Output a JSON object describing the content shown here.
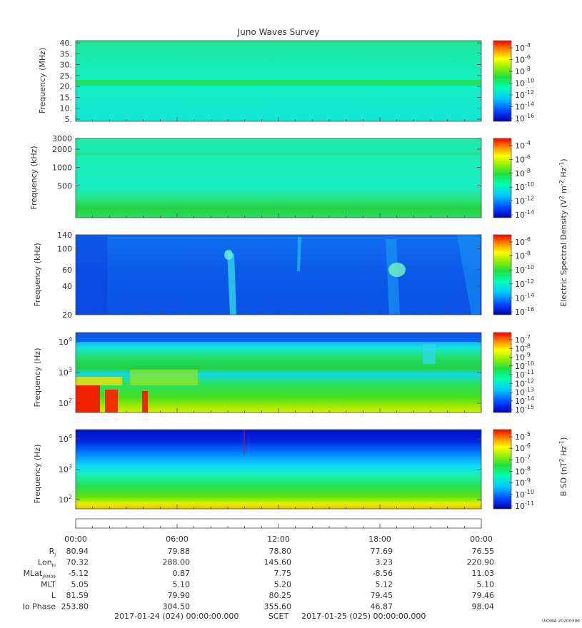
{
  "chart_data": {
    "title": "Juno Waves Survey",
    "type": "heatmap",
    "panels": [
      {
        "name": "panel-1",
        "ylabel": "Frequency (MHz)",
        "yscale": "linear",
        "ylim": [
          4,
          41
        ],
        "yticks": [
          {
            "v": 5,
            "label": "5."
          },
          {
            "v": 10,
            "label": "10."
          },
          {
            "v": 15,
            "label": "15."
          },
          {
            "v": 20,
            "label": "20."
          },
          {
            "v": 25,
            "label": "25."
          },
          {
            "v": 30,
            "label": "30."
          },
          {
            "v": 35,
            "label": "35."
          },
          {
            "v": 40,
            "label": "40."
          }
        ],
        "cbar_exps": [
          "-4",
          "-6",
          "-8",
          "-10",
          "-12",
          "-14",
          "-16"
        ]
      },
      {
        "name": "panel-2",
        "ylabel": "Frequency (kHz)",
        "yscale": "log",
        "ylim": [
          150,
          3000
        ],
        "yticks": [
          {
            "v": 500,
            "label": "500"
          },
          {
            "v": 1000,
            "label": "1000"
          },
          {
            "v": 2000,
            "label": "2000"
          },
          {
            "v": 3000,
            "label": "3000"
          }
        ],
        "cbar_exps": [
          "-4",
          "-6",
          "-8",
          "-10",
          "-12",
          "-14"
        ]
      },
      {
        "name": "panel-3",
        "ylabel": "Frequency (kHz)",
        "yscale": "log",
        "ylim": [
          20,
          140
        ],
        "yticks": [
          {
            "v": 20,
            "label": "20"
          },
          {
            "v": 40,
            "label": "40"
          },
          {
            "v": 60,
            "label": "60"
          },
          {
            "v": 100,
            "label": "100"
          },
          {
            "v": 140,
            "label": "140"
          }
        ],
        "cbar_exps": [
          "-6",
          "-8",
          "-10",
          "-12",
          "-14",
          "-16"
        ]
      },
      {
        "name": "panel-4",
        "ylabel": "Frequency (Hz)",
        "yscale": "log",
        "ylim": [
          50,
          20000
        ],
        "yticks": [
          {
            "v": 100,
            "exp": "2"
          },
          {
            "v": 1000,
            "exp": "3"
          },
          {
            "v": 10000,
            "exp": "4"
          }
        ],
        "cbar_exps": [
          "-7",
          "-8",
          "-9",
          "-10",
          "-11",
          "-12",
          "-13",
          "-14",
          "-15"
        ]
      },
      {
        "name": "panel-5",
        "ylabel": "Frequency (Hz)",
        "yscale": "log",
        "ylim": [
          50,
          20000
        ],
        "yticks": [
          {
            "v": 100,
            "exp": "2"
          },
          {
            "v": 1000,
            "exp": "3"
          },
          {
            "v": 10000,
            "exp": "4"
          }
        ],
        "cbar_exps": [
          "-5",
          "-6",
          "-7",
          "-8",
          "-9",
          "-10",
          "-11"
        ]
      }
    ],
    "colorbar_label_1": "Electric Spectral Density (V",
    "colorbar_label_2": "B SD (nT",
    "x_ticks": [
      "00:00",
      "06:00",
      "12:00",
      "18:00",
      "00:00"
    ],
    "ephemeris": [
      {
        "label": "R",
        "sub": "J",
        "values": [
          "80.94",
          "79.88",
          "78.80",
          "77.69",
          "76.55"
        ]
      },
      {
        "label": "Lon",
        "sub": "III",
        "values": [
          "70.32",
          "288.00",
          "145.60",
          "3.23",
          "220.90"
        ]
      },
      {
        "label": "MLat",
        "sub": "JRM09",
        "values": [
          "-5.12",
          "0.87",
          "7.75",
          "-8.56",
          "11.03"
        ]
      },
      {
        "label": "MLT",
        "sub": "",
        "values": [
          "5.05",
          "5.10",
          "5.20",
          "5.12",
          "5.10"
        ]
      },
      {
        "label": "L",
        "sub": "",
        "values": [
          "81.59",
          "79.90",
          "80.25",
          "79.45",
          "79.46"
        ]
      },
      {
        "label": "Io Phase",
        "sub": "",
        "values": [
          "253.80",
          "304.50",
          "355.60",
          "46.87",
          "98.04"
        ]
      }
    ],
    "time_range": {
      "start": "2017-01-24 (024) 00:00:00.000",
      "label": "SCET",
      "end": "2017-01-25 (025) 00:00:00.000"
    },
    "credit": "UIOWA 20200306"
  }
}
